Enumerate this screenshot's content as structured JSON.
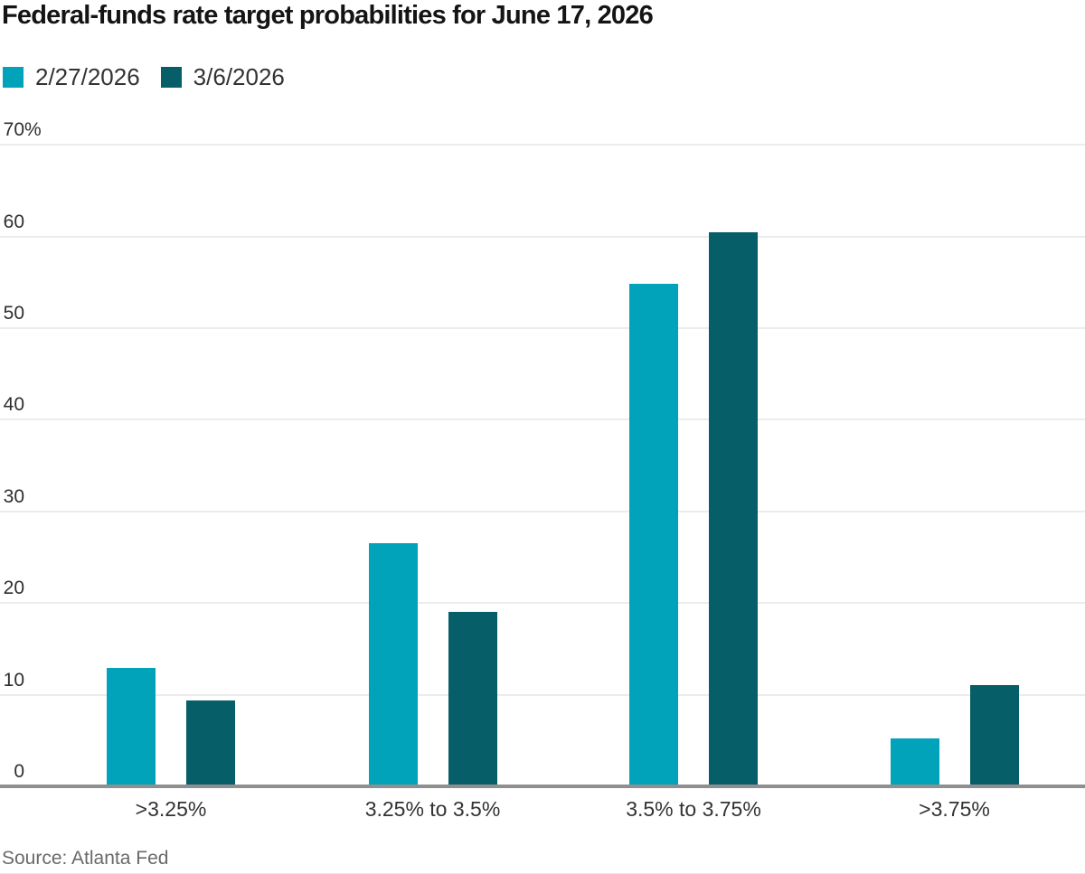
{
  "header": {
    "title": "Federal-funds rate target probabilities for June 17, 2026"
  },
  "legend": [
    {
      "label": "2/27/2026",
      "color": "#00a3ba"
    },
    {
      "label": "3/6/2026",
      "color": "#055e68"
    }
  ],
  "source": {
    "label": "Source: Atlanta Fed"
  },
  "colors": {
    "series1": "#00a3ba",
    "series2": "#055e68",
    "gridline": "#ececec",
    "axis": "#8f8f8f",
    "title_text": "#141414",
    "tick_text": "#2e2e2e",
    "category_text": "#333333",
    "source_text": "#696969"
  },
  "chart_data": {
    "type": "bar",
    "title": "Federal-funds rate target probabilities for June 17, 2026",
    "categories": [
      ">3.25%",
      "3.25% to 3.5%",
      "3.5% to 3.75%",
      ">3.75%"
    ],
    "series": [
      {
        "name": "2/27/2026",
        "color": "#00a3ba",
        "values": [
          12.9,
          26.5,
          54.8,
          5.2
        ]
      },
      {
        "name": "3/6/2026",
        "color": "#055e68",
        "values": [
          9.4,
          19.0,
          60.5,
          11.0
        ]
      }
    ],
    "xlabel": "",
    "ylabel": "",
    "ylim": [
      0,
      70
    ],
    "yticks": [
      0,
      10,
      20,
      30,
      40,
      50,
      60,
      70
    ],
    "ytick_top_suffix": "%",
    "grid": true,
    "legend_position": "top-left",
    "source": "Source: Atlanta Fed"
  }
}
